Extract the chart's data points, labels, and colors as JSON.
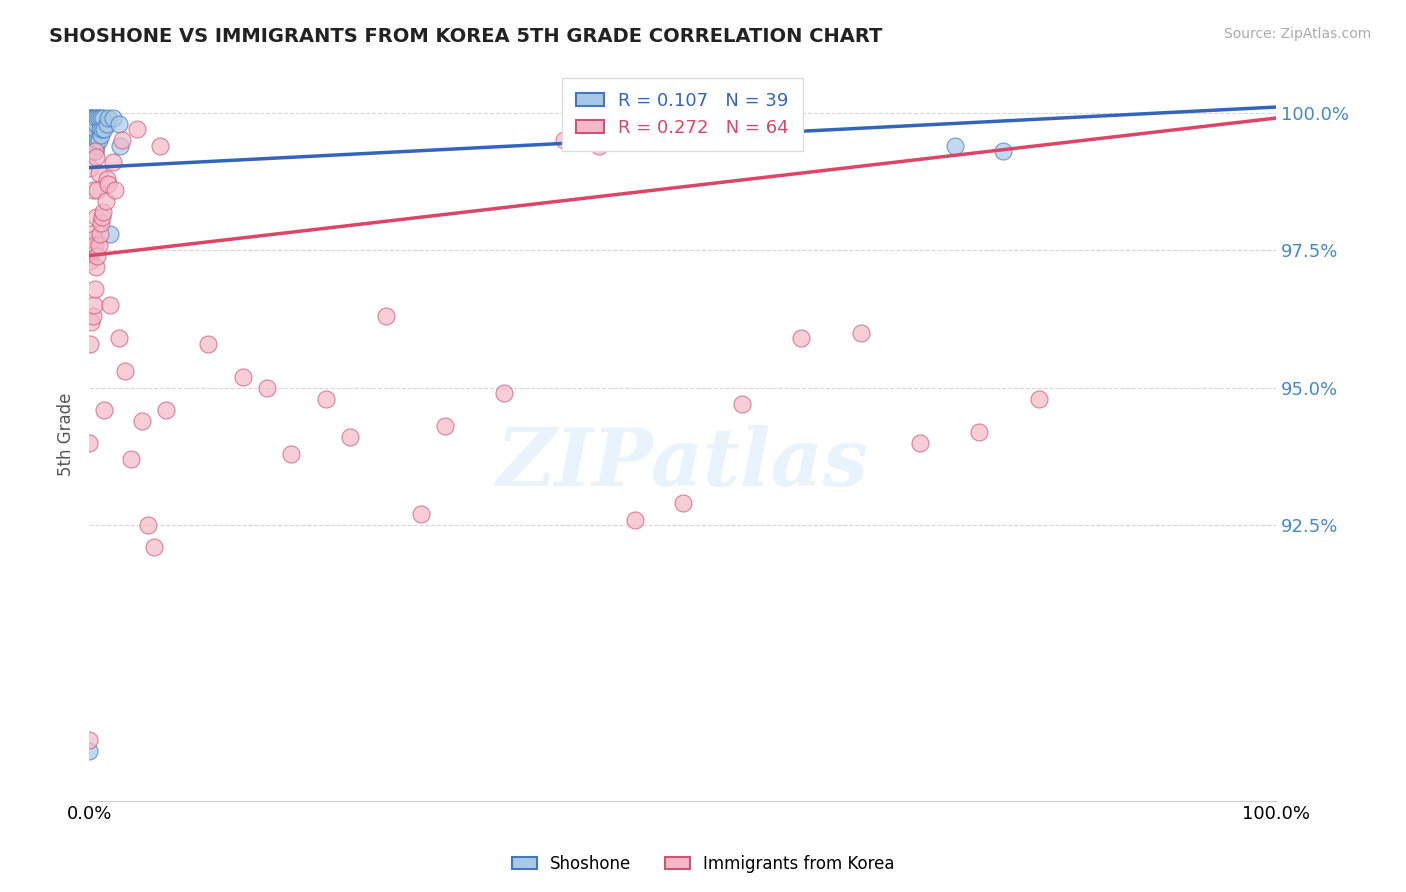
{
  "title": "SHOSHONE VS IMMIGRANTS FROM KOREA 5TH GRADE CORRELATION CHART",
  "source": "Source: ZipAtlas.com",
  "ylabel": "5th Grade",
  "xlim": [
    0.0,
    1.0
  ],
  "ylim": [
    0.875,
    1.008
  ],
  "yticks": [
    0.925,
    0.95,
    0.975,
    1.0
  ],
  "ytick_labels": [
    "92.5%",
    "95.0%",
    "97.5%",
    "100.0%"
  ],
  "blue_R": 0.107,
  "blue_N": 39,
  "pink_R": 0.272,
  "pink_N": 64,
  "blue_color": "#a8c8e8",
  "pink_color": "#f4b8c8",
  "blue_edge_color": "#4477bb",
  "pink_edge_color": "#cc5577",
  "blue_line_color": "#3366bb",
  "pink_line_color": "#dd4466",
  "legend_blue_label": "Shoshone",
  "legend_pink_label": "Immigrants from Korea",
  "watermark": "ZIPatlas",
  "blue_line_y0": 0.99,
  "blue_line_y1": 1.001,
  "pink_line_y0": 0.974,
  "pink_line_y1": 0.999,
  "blue_scatter_x": [
    0.0,
    0.0,
    0.0,
    0.001,
    0.001,
    0.001,
    0.001,
    0.002,
    0.002,
    0.002,
    0.002,
    0.003,
    0.003,
    0.004,
    0.004,
    0.004,
    0.005,
    0.005,
    0.005,
    0.006,
    0.006,
    0.007,
    0.007,
    0.008,
    0.008,
    0.009,
    0.01,
    0.01,
    0.011,
    0.012,
    0.013,
    0.015,
    0.016,
    0.018,
    0.02,
    0.025,
    0.026,
    0.73,
    0.77
  ],
  "blue_scatter_y": [
    0.884,
    0.997,
    0.999,
    0.996,
    0.997,
    0.998,
    0.999,
    0.993,
    0.995,
    0.997,
    0.999,
    0.995,
    0.998,
    0.993,
    0.996,
    0.999,
    0.993,
    0.997,
    0.999,
    0.994,
    0.998,
    0.995,
    0.999,
    0.995,
    0.999,
    0.997,
    0.996,
    0.999,
    0.997,
    0.999,
    0.997,
    0.998,
    0.999,
    0.978,
    0.999,
    0.998,
    0.994,
    0.994,
    0.993
  ],
  "pink_scatter_x": [
    0.0,
    0.0,
    0.0,
    0.001,
    0.001,
    0.001,
    0.002,
    0.002,
    0.003,
    0.003,
    0.003,
    0.004,
    0.004,
    0.005,
    0.005,
    0.005,
    0.006,
    0.006,
    0.006,
    0.007,
    0.007,
    0.008,
    0.008,
    0.009,
    0.01,
    0.011,
    0.012,
    0.013,
    0.014,
    0.015,
    0.016,
    0.018,
    0.02,
    0.022,
    0.025,
    0.028,
    0.03,
    0.035,
    0.04,
    0.045,
    0.05,
    0.055,
    0.06,
    0.065,
    0.1,
    0.13,
    0.15,
    0.17,
    0.2,
    0.22,
    0.25,
    0.28,
    0.3,
    0.35,
    0.4,
    0.43,
    0.46,
    0.5,
    0.55,
    0.6,
    0.65,
    0.7,
    0.75,
    0.8
  ],
  "pink_scatter_y": [
    0.886,
    0.94,
    0.975,
    0.958,
    0.973,
    0.99,
    0.962,
    0.978,
    0.963,
    0.975,
    0.986,
    0.965,
    0.977,
    0.968,
    0.976,
    0.993,
    0.972,
    0.981,
    0.992,
    0.974,
    0.986,
    0.976,
    0.989,
    0.978,
    0.98,
    0.981,
    0.982,
    0.946,
    0.984,
    0.988,
    0.987,
    0.965,
    0.991,
    0.986,
    0.959,
    0.995,
    0.953,
    0.937,
    0.997,
    0.944,
    0.925,
    0.921,
    0.994,
    0.946,
    0.958,
    0.952,
    0.95,
    0.938,
    0.948,
    0.941,
    0.963,
    0.927,
    0.943,
    0.949,
    0.995,
    0.994,
    0.926,
    0.929,
    0.947,
    0.959,
    0.96,
    0.94,
    0.942,
    0.948
  ]
}
